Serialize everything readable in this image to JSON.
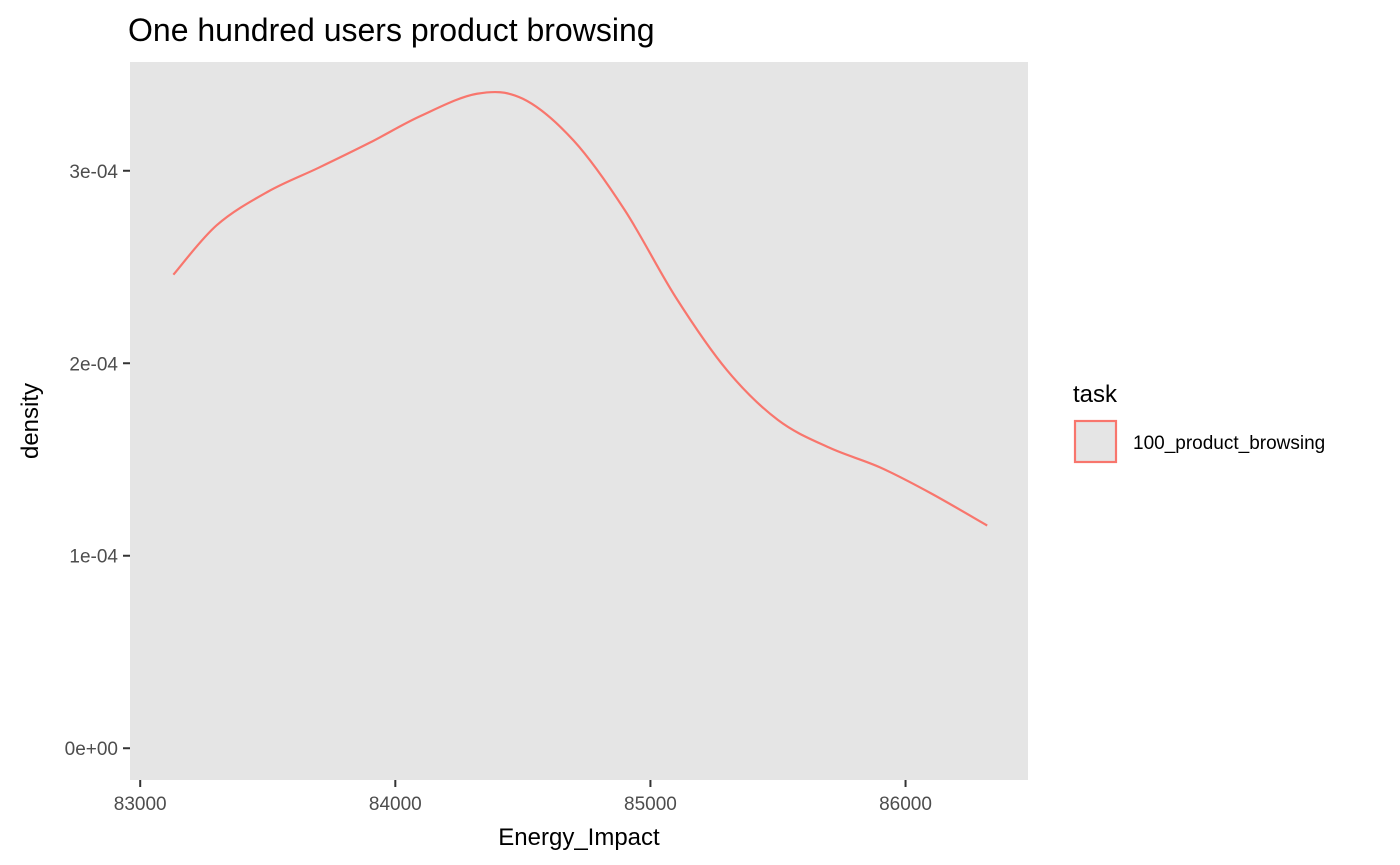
{
  "chart_data": {
    "type": "line",
    "title": "One hundred users product browsing",
    "xlabel": "Energy_Impact",
    "ylabel": "density",
    "xlim": [
      82960,
      86480
    ],
    "ylim": [
      -1.65e-05,
      0.0003565
    ],
    "x_ticks": [
      83000,
      84000,
      85000,
      86000
    ],
    "x_tick_labels": [
      "83000",
      "84000",
      "85000",
      "86000"
    ],
    "y_ticks": [
      0,
      0.0001,
      0.0002,
      0.0003
    ],
    "y_tick_labels": [
      "0e+00",
      "1e-04",
      "2e-04",
      "3e-04"
    ],
    "grid": false,
    "panel_background": "#e5e5e5",
    "legend": {
      "title": "task",
      "position": "right",
      "items": [
        {
          "label": "100_product_browsing",
          "color": "#f8766d"
        }
      ]
    },
    "series": [
      {
        "name": "100_product_browsing",
        "color": "#f8766d",
        "x": [
          83130,
          83300,
          83500,
          83700,
          83900,
          84100,
          84320,
          84500,
          84700,
          84900,
          85100,
          85300,
          85500,
          85700,
          85900,
          86100,
          86320
        ],
        "y": [
          0.000246,
          0.0002717,
          0.0002891,
          0.0003016,
          0.0003146,
          0.0003285,
          0.00034,
          0.0003374,
          0.0003155,
          0.0002794,
          0.0002341,
          0.0001964,
          0.0001705,
          0.0001562,
          0.0001459,
          0.0001324,
          0.0001157
        ]
      }
    ]
  }
}
